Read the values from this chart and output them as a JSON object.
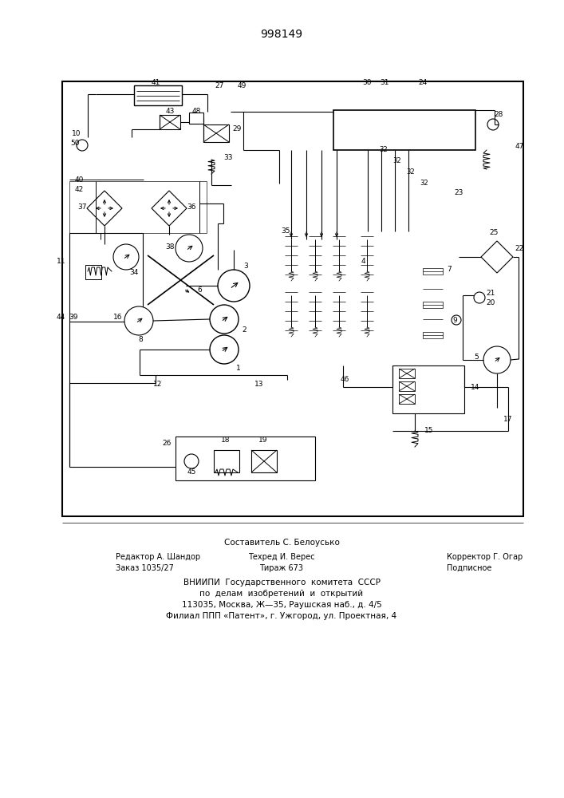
{
  "patent_number": "998149",
  "bg": "#ffffff",
  "lc": "#000000",
  "fig_w": 7.07,
  "fig_h": 10.0,
  "sestavitel": "Составитель С. Белоусько",
  "footer1_left": "Редактор А. Шандор",
  "footer1_mid": "Техред И. Верес",
  "footer1_right": "Корректор Г. Огар",
  "footer2_left": "Заказ 1035/27",
  "footer2_mid": "Тираж 673",
  "footer2_right": "Подписное",
  "vnii1": "ВНИИПИ  Государственного  комитета  СССР",
  "vnii2": "по  делам  изобретений  и  открытий",
  "vnii3": "113035, Москва, Ж—35, Раушская наб., д. 4/5",
  "vnii4": "Филиал ППП «Патент», г. Ужгород, ул. Проектная, 4"
}
